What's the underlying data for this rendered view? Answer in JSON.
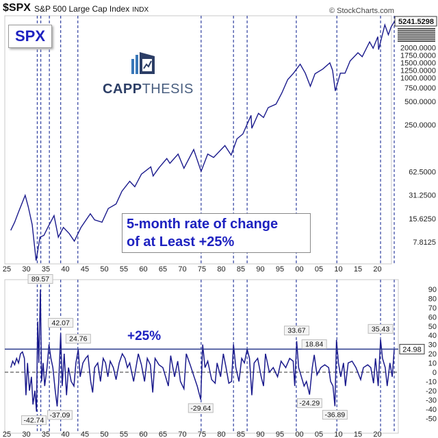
{
  "header": {
    "symbol": "$SPX",
    "name": "S&P 500 Large Cap Index",
    "exchange": "INDX",
    "credit": "© StockCharts.com"
  },
  "overlays": {
    "spx_label": "SPX",
    "logo_text_bold": "CAPP",
    "logo_text_light": "THESIS",
    "note_line1": "5-month rate of change",
    "note_line2": "of at Least +25%",
    "threshold_label": "+25%"
  },
  "colors": {
    "series": "#1a1a8c",
    "guide": "#2f3f9f",
    "annotation": "#1e22c0",
    "grid_border": "#c8c8c8"
  },
  "chart_data": [
    {
      "type": "line",
      "title": "$SPX S&P 500 Large Cap Index",
      "y_scale": "log",
      "x_tick_labels": [
        "25",
        "30",
        "35",
        "40",
        "45",
        "50",
        "55",
        "60",
        "65",
        "70",
        "75",
        "80",
        "85",
        "90",
        "95",
        "00",
        "05",
        "10",
        "15",
        "20"
      ],
      "x_tick_years": [
        1925,
        1930,
        1935,
        1940,
        1945,
        1950,
        1955,
        1960,
        1965,
        1970,
        1975,
        1980,
        1985,
        1990,
        1995,
        2000,
        2005,
        2010,
        2015,
        2020
      ],
      "y_tick_labels": [
        "2000.0000",
        "1750.0000",
        "1500.0000",
        "1250.0000",
        "1000.0000",
        "750.0000",
        "500.0000",
        "250.0000",
        "62.5000",
        "31.2500",
        "15.6250",
        "7.8125"
      ],
      "y_ticks": [
        2000,
        1750,
        1500,
        1250,
        1000,
        750,
        500,
        250,
        62.5,
        31.25,
        15.625,
        7.8125
      ],
      "last_value_label": "5241.5298",
      "last_value": 5241.5298,
      "x": [
        1926,
        1927,
        1928,
        1929.7,
        1930.5,
        1931.5,
        1932.5,
        1933.5,
        1934.5,
        1935.5,
        1937.1,
        1938.2,
        1939.5,
        1941,
        1942.3,
        1944,
        1946.4,
        1947.5,
        1949.4,
        1951,
        1953,
        1954.5,
        1956.5,
        1957.8,
        1959.5,
        1961.9,
        1962.5,
        1964,
        1966,
        1966.8,
        1968.9,
        1970.4,
        1972.9,
        1974.8,
        1976.5,
        1978,
        1980.9,
        1982.5,
        1984,
        1985.5,
        1987.6,
        1987.8,
        1989.5,
        1990.8,
        1992,
        1994,
        1995.5,
        1997,
        1998.5,
        2000.2,
        2001.5,
        2002.8,
        2004,
        2006,
        2007.8,
        2008.5,
        2009.2,
        2010.5,
        2011.7,
        2013,
        2015,
        2016.1,
        2018,
        2018.9,
        2020.1,
        2020.3,
        2021.9,
        2022.8,
        2023.5,
        2024.3
      ],
      "values": [
        11,
        14,
        19,
        31,
        22,
        13,
        4.5,
        9,
        9.5,
        12,
        17,
        9,
        12,
        10,
        8,
        12,
        18,
        15,
        14,
        21,
        24,
        35,
        47,
        40,
        58,
        72,
        55,
        70,
        92,
        80,
        105,
        69,
        120,
        63,
        105,
        95,
        135,
        102,
        165,
        190,
        330,
        225,
        350,
        310,
        415,
        460,
        640,
        950,
        1150,
        1500,
        1150,
        780,
        1130,
        1300,
        1560,
        1250,
        680,
        1150,
        1150,
        1650,
        2100,
        1870,
        2900,
        2400,
        3380,
        2300,
        4790,
        3580,
        4500,
        5241.53
      ]
    },
    {
      "type": "line",
      "title": "5-month rate of change",
      "y_tick_labels": [
        "90",
        "80",
        "70",
        "60",
        "50",
        "40",
        "30",
        "20",
        "10",
        "0",
        "-10",
        "-20",
        "-30",
        "-40",
        "-50"
      ],
      "y_ticks": [
        90,
        80,
        70,
        60,
        50,
        40,
        30,
        20,
        10,
        0,
        -10,
        -20,
        -30,
        -40,
        -50
      ],
      "ylim": [
        -55,
        100
      ],
      "x_tick_labels": [
        "25",
        "30",
        "35",
        "40",
        "45",
        "50",
        "55",
        "60",
        "65",
        "70",
        "75",
        "80",
        "85",
        "90",
        "95",
        "00",
        "05",
        "10",
        "15",
        "20"
      ],
      "x_tick_years": [
        1925,
        1930,
        1935,
        1940,
        1945,
        1950,
        1955,
        1960,
        1965,
        1970,
        1975,
        1980,
        1985,
        1990,
        1995,
        2000,
        2005,
        2010,
        2015,
        2020
      ],
      "threshold": 25,
      "last_value_label": "24.98",
      "x": [
        1926,
        1926.5,
        1927,
        1927.5,
        1928,
        1928.5,
        1929,
        1929.5,
        1929.9,
        1930.3,
        1930.8,
        1931.3,
        1931.7,
        1932.2,
        1932.6,
        1932.9,
        1933.2,
        1933.6,
        1933.9,
        1934.3,
        1934.7,
        1935.3,
        1935.8,
        1936.3,
        1936.8,
        1937.4,
        1937.9,
        1938.3,
        1938.8,
        1939.2,
        1939.7,
        1940.3,
        1940.8,
        1941.5,
        1942.2,
        1942.7,
        1943.3,
        1943.8,
        1944.5,
        1945.2,
        1945.8,
        1946.5,
        1947,
        1947.5,
        1948.3,
        1949,
        1949.7,
        1950.3,
        1950.9,
        1951.5,
        1952.3,
        1953,
        1953.8,
        1954.6,
        1955.3,
        1955.9,
        1956.5,
        1957.5,
        1958.1,
        1958.7,
        1959.5,
        1960.3,
        1961,
        1961.8,
        1962.4,
        1963,
        1964,
        1965,
        1966.4,
        1967,
        1968,
        1968.8,
        1969.5,
        1970.4,
        1971,
        1972,
        1973,
        1973.8,
        1974.7,
        1975.2,
        1975.8,
        1976.5,
        1977.5,
        1978.4,
        1978.9,
        1979.8,
        1980.5,
        1981.2,
        1981.9,
        1982.6,
        1983.1,
        1983.7,
        1984.5,
        1985.2,
        1985.9,
        1986.6,
        1987.2,
        1987.8,
        1988.4,
        1989.3,
        1990.2,
        1990.8,
        1991.3,
        1992.3,
        1993.3,
        1994.4,
        1995.3,
        1996.5,
        1997.5,
        1998.4,
        1998.8,
        1999.3,
        1999.8,
        2000.5,
        2001.2,
        2001.8,
        2002.6,
        2003.3,
        2003.8,
        2004.5,
        2005.5,
        2006.5,
        2007.5,
        2008,
        2008.6,
        2009.1,
        2009.5,
        2010,
        2010.6,
        2011.3,
        2011.8,
        2012.5,
        2013.5,
        2014.5,
        2015.7,
        2016.4,
        2017.5,
        2018.3,
        2019,
        2019.5,
        2020.2,
        2020.8,
        2021.3,
        2022,
        2022.5,
        2023.2,
        2023.8,
        2024.3
      ],
      "values": [
        5,
        12,
        8,
        15,
        10,
        20,
        22,
        15,
        -25,
        10,
        -20,
        -5,
        -35,
        -20,
        -42.74,
        55,
        10,
        89.57,
        -10,
        10,
        -15,
        5,
        30,
        15,
        5,
        -20,
        -37.09,
        -10,
        42.07,
        -15,
        20,
        -25,
        5,
        -10,
        -15,
        10,
        24.76,
        -5,
        10,
        15,
        18,
        -10,
        -22,
        5,
        10,
        -10,
        15,
        10,
        -5,
        12,
        5,
        -8,
        10,
        20,
        15,
        5,
        10,
        -10,
        5,
        20,
        8,
        -10,
        15,
        8,
        -22,
        15,
        8,
        5,
        -15,
        18,
        -5,
        12,
        -10,
        -18,
        20,
        8,
        -5,
        -15,
        -29.64,
        30,
        5,
        12,
        -8,
        -12,
        10,
        -5,
        20,
        5,
        -12,
        -10,
        30,
        5,
        -10,
        15,
        10,
        25,
        15,
        -25,
        10,
        15,
        -5,
        -15,
        20,
        0,
        5,
        -5,
        12,
        5,
        15,
        12,
        -15,
        33.67,
        5,
        -5,
        -15,
        -10,
        -24.29,
        5,
        18.84,
        -3,
        5,
        8,
        5,
        -10,
        -15,
        -36.89,
        35,
        10,
        -5,
        10,
        -15,
        10,
        12,
        5,
        -8,
        5,
        8,
        5,
        -12,
        15,
        -15,
        35.43,
        15,
        5,
        -15,
        10,
        -5,
        24.98
      ],
      "annotations": [
        {
          "x": 1933.6,
          "value": 89.57,
          "label": "89.57"
        },
        {
          "x": 1938.8,
          "value": 42.07,
          "label": "42.07"
        },
        {
          "x": 1943.3,
          "value": 24.76,
          "label": "24.76"
        },
        {
          "x": 1999.3,
          "value": 33.67,
          "label": "33.67"
        },
        {
          "x": 2003.8,
          "value": 18.84,
          "label": "18.84"
        },
        {
          "x": 2020.8,
          "value": 35.43,
          "label": "35.43"
        },
        {
          "x": 1932.6,
          "value": -42.74,
          "label": "-42.74"
        },
        {
          "x": 1937.9,
          "value": -37.09,
          "label": "-37.09"
        },
        {
          "x": 1974.7,
          "value": -29.64,
          "label": "-29.64"
        },
        {
          "x": 2002.6,
          "value": -24.29,
          "label": "-24.29"
        },
        {
          "x": 2009.1,
          "value": -36.89,
          "label": "-36.89"
        }
      ]
    }
  ],
  "signal_years": [
    1932.8,
    1933.7,
    1935.9,
    1938.8,
    1943.2,
    1974.8,
    1983.1,
    1986.6,
    1999.2,
    2009.6,
    2020.8,
    2024.3
  ]
}
